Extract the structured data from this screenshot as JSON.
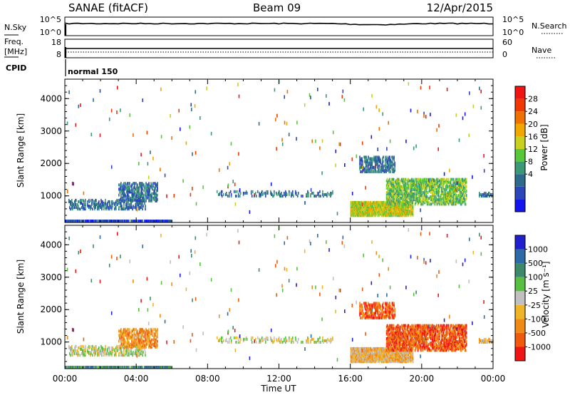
{
  "header": {
    "station": "SANAE (fitACF)",
    "beam": "Beam 09",
    "date": "12/Apr/2015"
  },
  "strip_labels": {
    "nsky": "N.Sky",
    "nsky_ticks": [
      "10^5",
      "10^0"
    ],
    "nsearch": "N.Search",
    "nsearch_ticks": [
      "10^5",
      "10^0"
    ],
    "freq": "Freq.",
    "freq_unit": "[MHz]",
    "freq_ticks": [
      "18",
      "8"
    ],
    "nave": "Nave",
    "nave_ticks": [
      "60",
      "0"
    ],
    "cpid": "CPID",
    "cpid_value": "normal 150"
  },
  "x_axis": {
    "label": "Time UT",
    "ticks": [
      "00:00",
      "04:00",
      "08:00",
      "12:00",
      "16:00",
      "20:00",
      "00:00"
    ],
    "range_hours": [
      0,
      24
    ]
  },
  "y_axis": {
    "label": "Slant Range [km]",
    "ticks": [
      1000,
      2000,
      3000,
      4000
    ],
    "range_km": [
      180,
      4600
    ]
  },
  "power_scale": {
    "label": "Power [dB]",
    "ticks": [
      "28",
      "24",
      "20",
      "16",
      "12",
      "8",
      "4"
    ],
    "colors": [
      "#1414f0",
      "#2a46b8",
      "#2c6b8c",
      "#3a9a78",
      "#56c83a",
      "#c8d020",
      "#f0a800",
      "#f07000",
      "#f03800",
      "#f01414"
    ]
  },
  "velocity_scale": {
    "label": "Velocity [m s⁻¹]",
    "ticks": [
      "1000",
      "500",
      "100",
      "25",
      "-25",
      "-100",
      "-500",
      "-1000"
    ],
    "colors": [
      "#2020d0",
      "#2c6ba8",
      "#3c8a6a",
      "#58c040",
      "#c0c0c0",
      "#f0b428",
      "#f08a14",
      "#f05a0a",
      "#f01414"
    ]
  },
  "chart_data": {
    "type": "heatmap",
    "panels": [
      {
        "name": "Power",
        "quantity": "Power [dB]",
        "regions": [
          {
            "t": [
              0.0,
              6.0
            ],
            "r": [
              180,
              230
            ],
            "level": 1,
            "density": 0.9
          },
          {
            "t": [
              0.2,
              4.5
            ],
            "r": [
              550,
              850
            ],
            "level": 2,
            "density": 0.35
          },
          {
            "t": [
              3.0,
              5.2
            ],
            "r": [
              800,
              1400
            ],
            "level": 2,
            "density": 0.45
          },
          {
            "t": [
              8.5,
              15.0
            ],
            "r": [
              950,
              1150
            ],
            "level": 2,
            "density": 0.2
          },
          {
            "t": [
              16.0,
              19.5
            ],
            "r": [
              350,
              800
            ],
            "level": 5,
            "density": 0.8
          },
          {
            "t": [
              18.0,
              22.5
            ],
            "r": [
              700,
              1500
            ],
            "level": 4,
            "density": 0.55
          },
          {
            "t": [
              16.5,
              18.5
            ],
            "r": [
              1700,
              2200
            ],
            "level": 2,
            "density": 0.45
          },
          {
            "t": [
              23.2,
              24.0
            ],
            "r": [
              950,
              1100
            ],
            "level": 2,
            "density": 0.5
          }
        ]
      },
      {
        "name": "Velocity",
        "quantity": "Velocity [m s-1]",
        "regions": [
          {
            "t": [
              0.0,
              6.0
            ],
            "r": [
              180,
              230
            ],
            "level": 2,
            "density": 0.9
          },
          {
            "t": [
              0.2,
              4.5
            ],
            "r": [
              550,
              850
            ],
            "level": 4,
            "density": 0.35
          },
          {
            "t": [
              3.0,
              5.2
            ],
            "r": [
              800,
              1400
            ],
            "level": 6,
            "density": 0.45
          },
          {
            "t": [
              8.5,
              15.0
            ],
            "r": [
              950,
              1150
            ],
            "level": 4,
            "density": 0.2
          },
          {
            "t": [
              16.0,
              19.5
            ],
            "r": [
              350,
              800
            ],
            "level": 5,
            "density": 0.8
          },
          {
            "t": [
              18.0,
              22.5
            ],
            "r": [
              700,
              1500
            ],
            "level": 7,
            "density": 0.55
          },
          {
            "t": [
              16.5,
              18.5
            ],
            "r": [
              1700,
              2200
            ],
            "level": 7,
            "density": 0.45
          },
          {
            "t": [
              23.2,
              24.0
            ],
            "r": [
              950,
              1100
            ],
            "level": 5,
            "density": 0.5
          }
        ]
      }
    ],
    "scatter_count": 170,
    "cpid": "normal 150",
    "n_sky_approx_log10": 3.6,
    "freq_mhz": 11.5,
    "nave_approx": 20
  }
}
